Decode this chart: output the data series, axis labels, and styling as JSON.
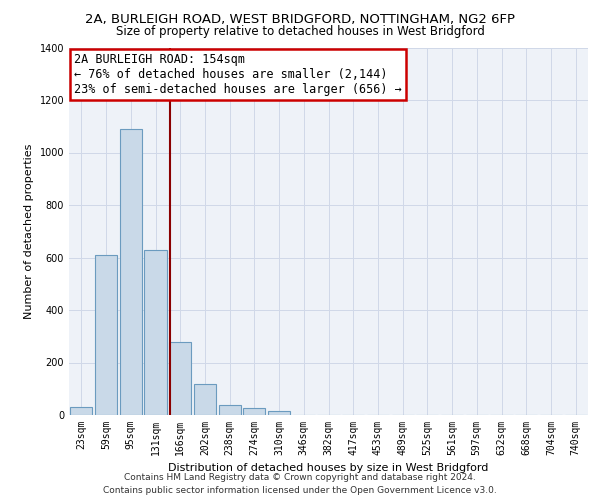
{
  "title_line1": "2A, BURLEIGH ROAD, WEST BRIDGFORD, NOTTINGHAM, NG2 6FP",
  "title_line2": "Size of property relative to detached houses in West Bridgford",
  "xlabel": "Distribution of detached houses by size in West Bridgford",
  "ylabel": "Number of detached properties",
  "bar_labels": [
    "23sqm",
    "59sqm",
    "95sqm",
    "131sqm",
    "166sqm",
    "202sqm",
    "238sqm",
    "274sqm",
    "310sqm",
    "346sqm",
    "382sqm",
    "417sqm",
    "453sqm",
    "489sqm",
    "525sqm",
    "561sqm",
    "597sqm",
    "632sqm",
    "668sqm",
    "704sqm",
    "740sqm"
  ],
  "bar_values": [
    30,
    610,
    1090,
    630,
    280,
    120,
    40,
    25,
    15,
    0,
    0,
    0,
    0,
    0,
    0,
    0,
    0,
    0,
    0,
    0,
    0
  ],
  "bar_color": "#c9d9e8",
  "bar_edge_color": "#6b9bbf",
  "grid_color": "#d0d8e8",
  "background_color": "#eef2f8",
  "annotation_line1": "2A BURLEIGH ROAD: 154sqm",
  "annotation_line2": "← 76% of detached houses are smaller (2,144)",
  "annotation_line3": "23% of semi-detached houses are larger (656) →",
  "vline_position": 3.57,
  "vline_color": "#8b0000",
  "ylim": [
    0,
    1400
  ],
  "yticks": [
    0,
    200,
    400,
    600,
    800,
    1000,
    1200,
    1400
  ],
  "footer_line1": "Contains HM Land Registry data © Crown copyright and database right 2024.",
  "footer_line2": "Contains public sector information licensed under the Open Government Licence v3.0.",
  "title_fontsize": 9.5,
  "subtitle_fontsize": 8.5,
  "axis_label_fontsize": 8,
  "tick_fontsize": 7,
  "annotation_fontsize": 8.5,
  "footer_fontsize": 6.5
}
